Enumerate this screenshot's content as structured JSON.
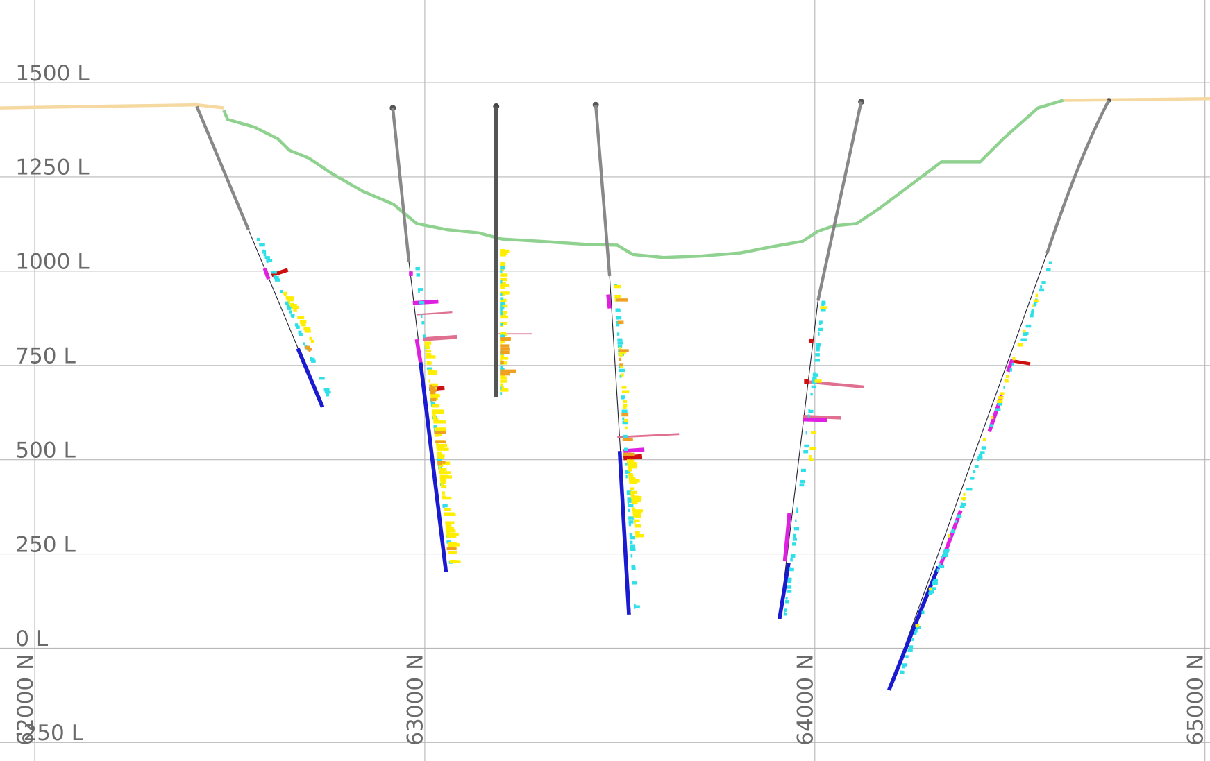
{
  "chart_data": {
    "type": "section",
    "xlim": [
      61911,
      65013
    ],
    "ylim": [
      -299,
      1719
    ],
    "xticks": [
      {
        "value": 62000,
        "label": "62000 N"
      },
      {
        "value": 63000,
        "label": "63000 N"
      },
      {
        "value": 64000,
        "label": "64000 N"
      },
      {
        "value": 65000,
        "label": "65000 N"
      }
    ],
    "yticks": [
      {
        "value": 1500,
        "label": "1500 L"
      },
      {
        "value": 1250,
        "label": "1250 L"
      },
      {
        "value": 1000,
        "label": "1000 L"
      },
      {
        "value": 750,
        "label": "750 L"
      },
      {
        "value": 500,
        "label": "500 L"
      },
      {
        "value": 250,
        "label": "250 L"
      },
      {
        "value": 0,
        "label": "0 L"
      },
      {
        "value": -250,
        "label": "-250 L"
      }
    ],
    "grid": true
  }
}
